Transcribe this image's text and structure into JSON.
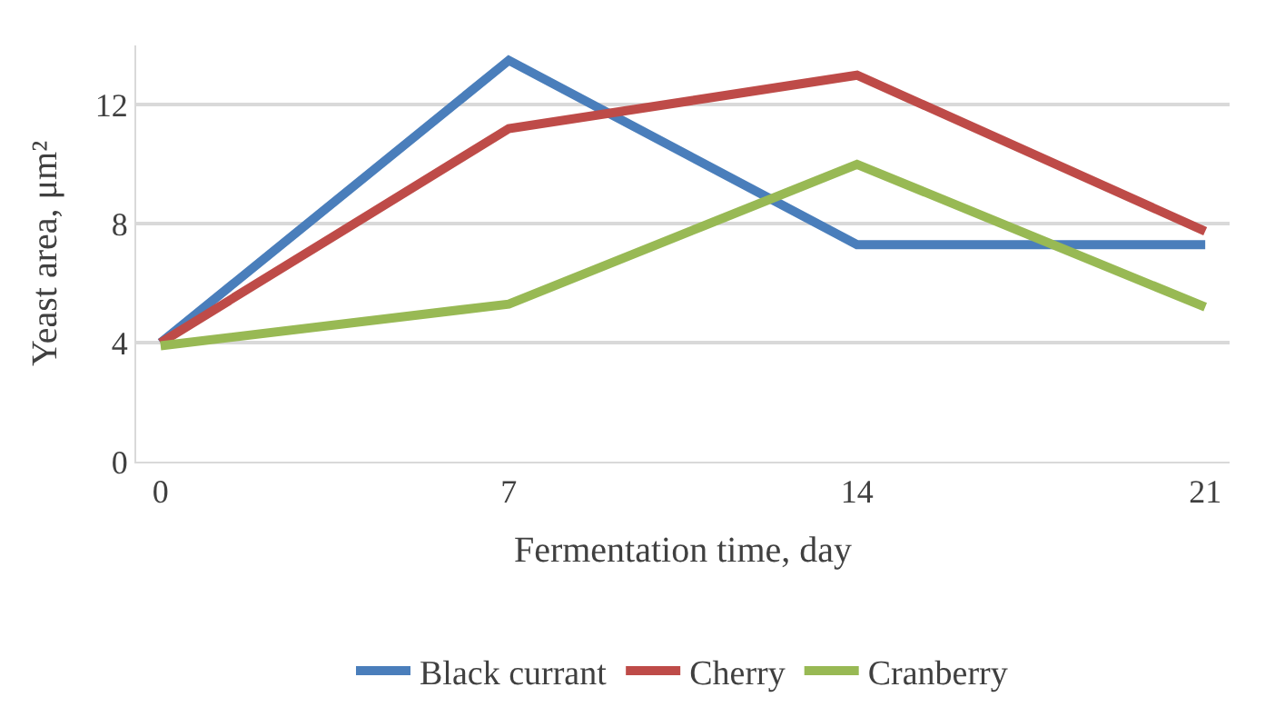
{
  "chart_data": {
    "type": "line",
    "xlabel": "Fermentation time, day",
    "ylabel": "Yeast area, μm²",
    "categories": [
      "0",
      "7",
      "14",
      "21"
    ],
    "series": [
      {
        "name": "Black currant",
        "color": "#4a7ebb",
        "values": [
          4.0,
          13.5,
          7.3,
          7.3
        ]
      },
      {
        "name": "Cherry",
        "color": "#be4b48",
        "values": [
          4.0,
          11.2,
          13.0,
          7.75
        ]
      },
      {
        "name": "Cranberry",
        "color": "#98b954",
        "values": [
          3.9,
          5.3,
          10.0,
          5.2
        ]
      }
    ],
    "ylim": [
      0,
      14
    ],
    "yticks": [
      0,
      4,
      8,
      12
    ],
    "grid": "y",
    "legend": "bottom",
    "marker": "none",
    "line_style": "solid"
  }
}
